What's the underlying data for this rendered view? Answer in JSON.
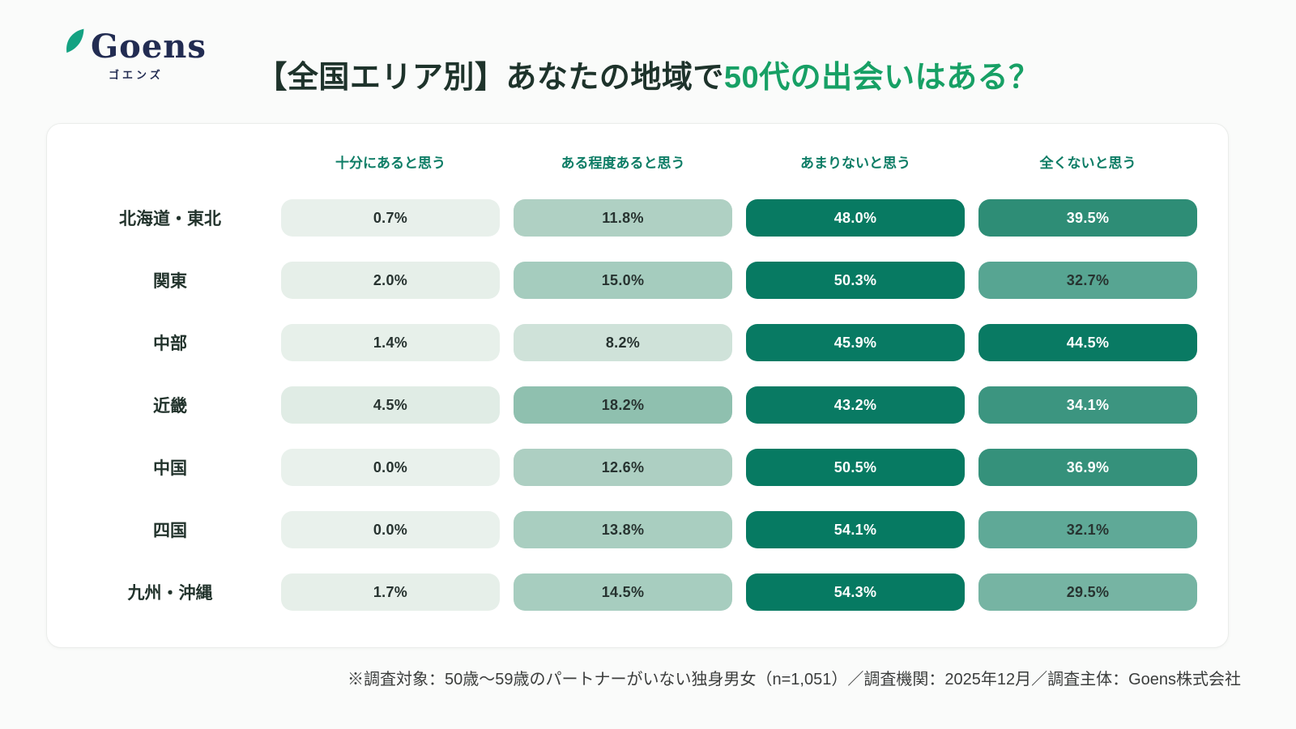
{
  "logo": {
    "name": "Goens",
    "kana": "ゴエンズ",
    "icon": "leaf"
  },
  "title": {
    "prefix": "【全国エリア別】あなたの地域で",
    "highlight": "50代の出会いはある？"
  },
  "chart_data": {
    "type": "heatmap",
    "columns": [
      "十分にあると思う",
      "ある程度あると思う",
      "あまりないと思う",
      "全くないと思う"
    ],
    "rows": [
      {
        "region": "北海道・東北",
        "values": [
          0.7,
          11.8,
          48.0,
          39.5
        ]
      },
      {
        "region": "関東",
        "values": [
          2.0,
          15.0,
          50.3,
          32.7
        ]
      },
      {
        "region": "中部",
        "values": [
          1.4,
          8.2,
          45.9,
          44.5
        ]
      },
      {
        "region": "近畿",
        "values": [
          4.5,
          18.2,
          43.2,
          34.1
        ]
      },
      {
        "region": "中国",
        "values": [
          0.0,
          12.6,
          50.5,
          36.9
        ]
      },
      {
        "region": "四国",
        "values": [
          0.0,
          13.8,
          54.1,
          32.1
        ]
      },
      {
        "region": "九州・沖縄",
        "values": [
          1.7,
          14.5,
          54.3,
          29.5
        ]
      }
    ],
    "value_format": "percent_1dp",
    "color_scale": {
      "stops": [
        [
          0,
          "#e9f1ec"
        ],
        [
          2,
          "#e6efe9"
        ],
        [
          4.5,
          "#e0ece5"
        ],
        [
          8.2,
          "#cfe2d9"
        ],
        [
          11.8,
          "#afd0c3"
        ],
        [
          15,
          "#a5ccbe"
        ],
        [
          18.2,
          "#8fc0af"
        ],
        [
          29.5,
          "#76b4a3"
        ],
        [
          32.5,
          "#5ba795"
        ],
        [
          34.1,
          "#3c9580"
        ],
        [
          39.5,
          "#2e8d76"
        ],
        [
          43,
          "#097a63"
        ],
        [
          60,
          "#057a61"
        ]
      ],
      "white_text_threshold": 33.5
    }
  },
  "footer": {
    "note": "※調査対象：50歳〜59歳のパートナーがいない独身男女（n=1,051）／調査機関：2025年12月／調査主体：Goens株式会社"
  },
  "colors": {
    "page_bg": "#fafbfa",
    "card_bg": "#ffffff",
    "header_teal": "#0e7d66",
    "title_dark": "#1e332b",
    "title_green": "#17a065",
    "row_label_dark": "#22332c",
    "value_dark_text": "#273330",
    "value_light_text": "#ffffff",
    "brand_navy": "#222c52",
    "leaf_green": "#14a282"
  }
}
